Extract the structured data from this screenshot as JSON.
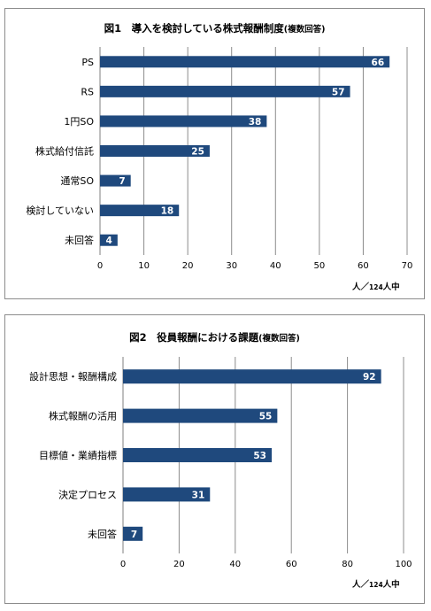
{
  "chart_data": [
    {
      "type": "bar",
      "orientation": "horizontal",
      "title_main": "図1　導入を検討している株式報酬制度",
      "title_note": "(複数回答)",
      "categories": [
        "PS",
        "RS",
        "1円SO",
        "株式給付信託",
        "通常SO",
        "検討していない",
        "未回答"
      ],
      "values": [
        66,
        57,
        38,
        25,
        7,
        18,
        4
      ],
      "xlim": [
        0,
        70
      ],
      "x_ticks": [
        0,
        10,
        20,
        30,
        40,
        50,
        60,
        70
      ],
      "unit_main": "人／",
      "unit_small": "124",
      "unit_tail": "人中",
      "bar_color": "#1f497d",
      "grid": true
    },
    {
      "type": "bar",
      "orientation": "horizontal",
      "title_main": "図2　役員報酬における課題",
      "title_note": "(複数回答)",
      "categories": [
        "設計思想・報酬構成",
        "株式報酬の活用",
        "目標値・業績指標",
        "決定プロセス",
        "未回答"
      ],
      "values": [
        92,
        55,
        53,
        31,
        7
      ],
      "xlim": [
        0,
        100
      ],
      "x_ticks": [
        0,
        20,
        40,
        60,
        80,
        100
      ],
      "unit_main": "人／",
      "unit_small": "124",
      "unit_tail": "人中",
      "bar_color": "#1f497d",
      "grid": true
    }
  ]
}
